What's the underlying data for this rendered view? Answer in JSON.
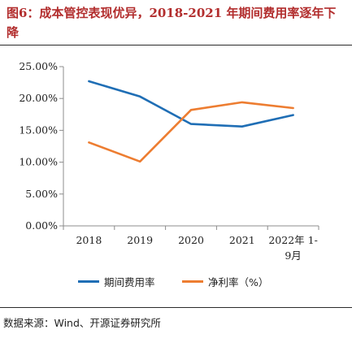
{
  "title": "图6：成本管控表现优异，2018-2021 年期间费用率逐年下降",
  "source": "数据来源：Wind、开源证券研究所",
  "chart_data": {
    "type": "line",
    "categories": [
      "2018",
      "2019",
      "2020",
      "2021",
      "2022年 1-9月"
    ],
    "category_lines": [
      [
        "2018"
      ],
      [
        "2019"
      ],
      [
        "2020"
      ],
      [
        "2021"
      ],
      [
        "2022年 1-",
        "9月"
      ]
    ],
    "ylim": [
      0,
      25
    ],
    "yticks": [
      "0.00%",
      "5.00%",
      "10.00%",
      "15.00%",
      "20.00%",
      "25.00%"
    ],
    "series": [
      {
        "name": "期间费用率",
        "color": "#1f6eb5",
        "values": [
          22.7,
          20.3,
          16.0,
          15.6,
          17.4
        ]
      },
      {
        "name": "净利率（%）",
        "color": "#ed7d31",
        "values": [
          13.1,
          10.1,
          18.2,
          19.4,
          18.5
        ]
      }
    ],
    "legend_position": "bottom",
    "grid": false
  }
}
